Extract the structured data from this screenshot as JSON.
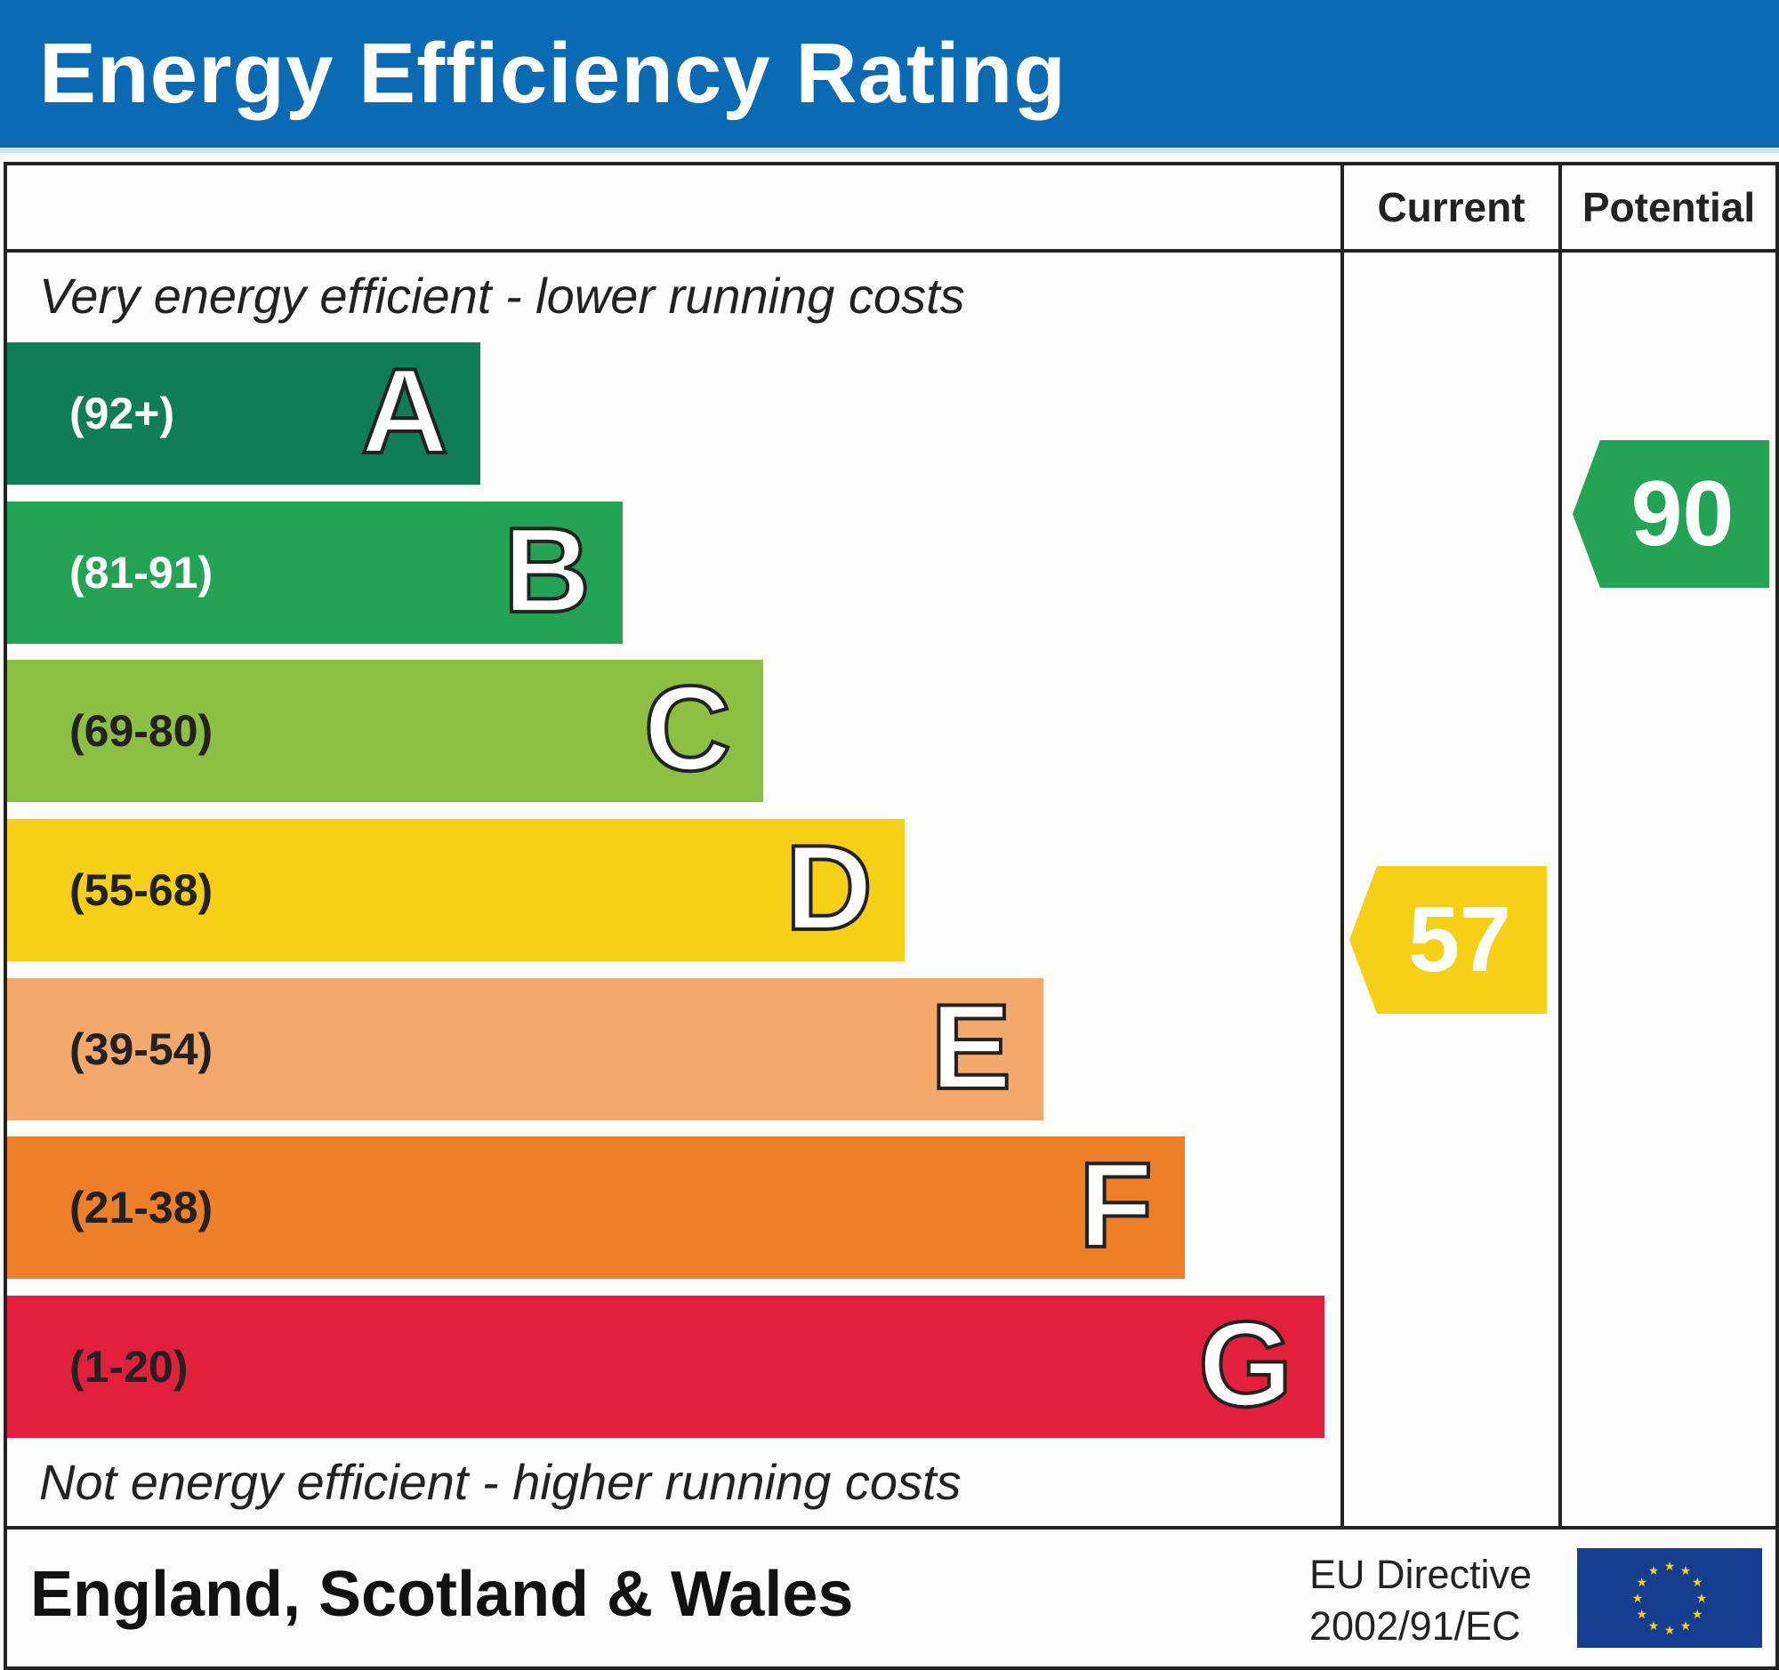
{
  "title": "Energy Efficiency Rating",
  "columns": {
    "current": "Current",
    "potential": "Potential"
  },
  "top_note": "Very energy efficient - lower running costs",
  "bottom_note": "Not energy efficient - higher running costs",
  "footer": {
    "region": "England, Scotland & Wales",
    "directive_line1": "EU Directive",
    "directive_line2": "2002/91/EC"
  },
  "chart_data": {
    "type": "bar",
    "bands": [
      {
        "letter": "A",
        "range": "(92+)",
        "color": "#0f7d55",
        "text_color": "#ffffff"
      },
      {
        "letter": "B",
        "range": "(81-91)",
        "color": "#22a454",
        "text_color": "#ffffff"
      },
      {
        "letter": "C",
        "range": "(69-80)",
        "color": "#8dbf42",
        "text_color": "#222222"
      },
      {
        "letter": "D",
        "range": "(55-68)",
        "color": "#f6cf17",
        "text_color": "#222222"
      },
      {
        "letter": "E",
        "range": "(39-54)",
        "color": "#f2a96b",
        "text_color": "#222222"
      },
      {
        "letter": "F",
        "range": "(21-38)",
        "color": "#ec7f27",
        "text_color": "#222222"
      },
      {
        "letter": "G",
        "range": "(1-20)",
        "color": "#e2203b",
        "text_color": "#222222"
      }
    ],
    "current": {
      "value": "57",
      "band": "D",
      "color": "#f6cf17"
    },
    "potential": {
      "value": "90",
      "band": "B",
      "color": "#22a454"
    }
  }
}
